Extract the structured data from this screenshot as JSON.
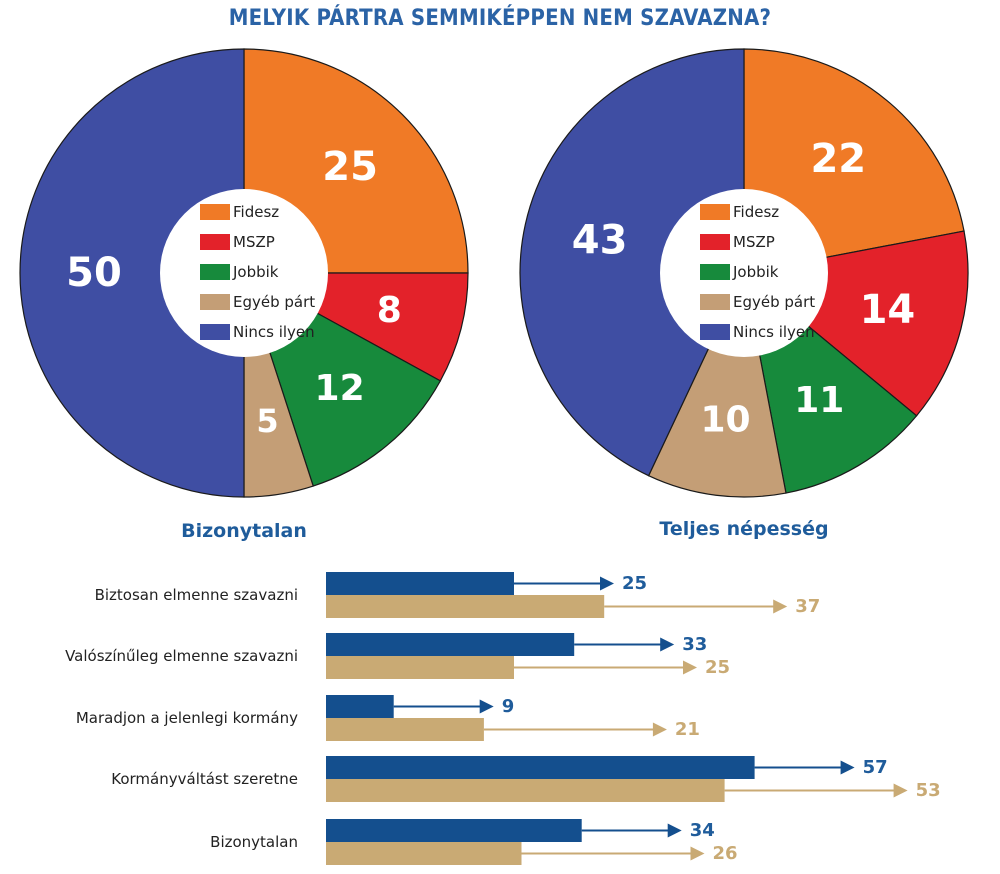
{
  "title": "MELYIK PÁRTRA SEMMIKÉPPEN NEM SZAVAZNA?",
  "colors": {
    "fidesz": "#f07a26",
    "mszp": "#e3222a",
    "jobbik": "#178a3c",
    "egyeb": "#c49e76",
    "nincs": "#3f4ea3",
    "series_a": "#144f8e",
    "series_b": "#c9aa74"
  },
  "chart_data": [
    {
      "type": "pie",
      "title": "Bizonytalan",
      "legend": [
        "Fidesz",
        "MSZP",
        "Jobbik",
        "Egyéb párt",
        "Nincs ilyen"
      ],
      "slices": [
        {
          "label": "Fidesz",
          "value": 25
        },
        {
          "label": "MSZP",
          "value": 8
        },
        {
          "label": "Jobbik",
          "value": 12
        },
        {
          "label": "Egyéb párt",
          "value": 5
        },
        {
          "label": "Nincs ilyen",
          "value": 50
        }
      ]
    },
    {
      "type": "pie",
      "title": "Teljes népesség",
      "legend": [
        "Fidesz",
        "MSZP",
        "Jobbik",
        "Egyéb párt",
        "Nincs ilyen"
      ],
      "slices": [
        {
          "label": "Fidesz",
          "value": 22
        },
        {
          "label": "MSZP",
          "value": 14
        },
        {
          "label": "Jobbik",
          "value": 11
        },
        {
          "label": "Egyéb párt",
          "value": 10
        },
        {
          "label": "Nincs ilyen",
          "value": 43
        }
      ]
    },
    {
      "type": "bar",
      "orientation": "horizontal",
      "categories": [
        "Biztosan elmenne szavazni",
        "Valószínűleg elmenne szavazni",
        "Maradjon a jelenlegi kormány",
        "Kormányváltást szeretne",
        "Bizonytalan"
      ],
      "series": [
        {
          "values": [
            25,
            33,
            9,
            57,
            34
          ]
        },
        {
          "values": [
            37,
            25,
            21,
            53,
            26
          ]
        }
      ]
    }
  ]
}
